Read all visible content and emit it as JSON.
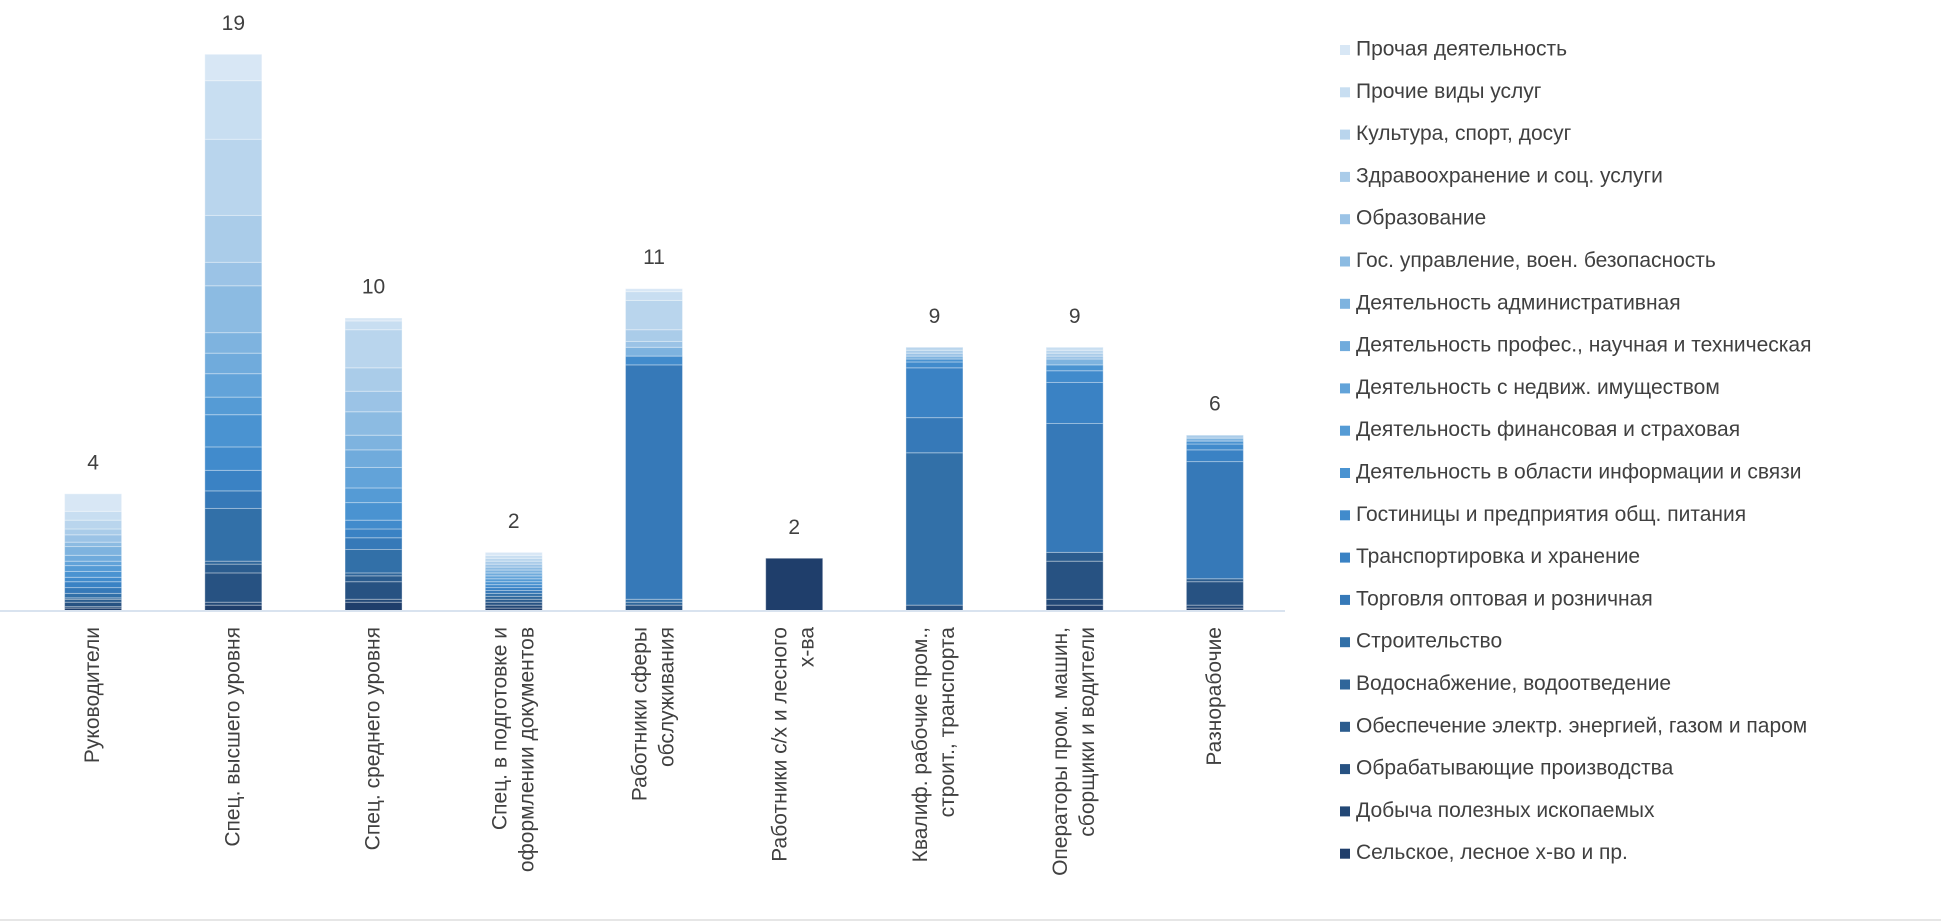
{
  "chart_data": {
    "type": "stacked_bar",
    "categories": [
      "Руководители",
      "Спец. высшего уровня",
      "Спец. среднего уровня",
      "Спец. в подготовке и оформлении документов",
      "Работники сферы обслуживания",
      "Работники с/х и лесного х-ва",
      "Квалиф. рабочие пром., строит., транспорта",
      "Операторы пром. машин, сборщики и водители",
      "Разнорабочие"
    ],
    "totals": [
      4,
      19,
      10,
      2,
      11,
      2,
      9,
      9,
      6
    ],
    "ylim": [
      0,
      20
    ],
    "legend": "right",
    "series": [
      {
        "name": "Сельское, лесное х-во и пр.",
        "color": "#1f3e6b",
        "values": [
          0.1,
          0.2,
          0.3,
          0.1,
          0,
          1.8,
          0,
          0.2,
          0.1
        ]
      },
      {
        "name": "Добыча полезных ископаемых",
        "color": "#234876",
        "values": [
          0.05,
          0.1,
          0.1,
          0.1,
          0,
          0,
          0,
          0.2,
          0.1
        ]
      },
      {
        "name": "Обрабатывающие производства",
        "color": "#275282",
        "values": [
          0.15,
          1.0,
          0.6,
          0.1,
          0.2,
          0,
          0.2,
          1.3,
          0.8
        ]
      },
      {
        "name": "Обеспечение электр. энергией, газом и паром",
        "color": "#2b5c8e",
        "values": [
          0.1,
          0.3,
          0.2,
          0.1,
          0,
          0,
          0,
          0.3,
          0.1
        ]
      },
      {
        "name": "Водоснабжение, водоотведение",
        "color": "#2f669a",
        "values": [
          0.05,
          0.1,
          0.1,
          0.1,
          0.1,
          0,
          0,
          0,
          0
        ]
      },
      {
        "name": "Строительство",
        "color": "#3270a8",
        "values": [
          0.15,
          1.8,
          0.8,
          0.1,
          0.1,
          0,
          5.2,
          0,
          0
        ]
      },
      {
        "name": "Торговля оптовая и розничная",
        "color": "#3679b8",
        "values": [
          0.2,
          0.6,
          0.4,
          0.1,
          8.0,
          0,
          1.2,
          4.4,
          4.0
        ]
      },
      {
        "name": "Транспортировка и хранение",
        "color": "#3a82c4",
        "values": [
          0.2,
          0.7,
          0.3,
          0.1,
          0,
          0,
          1.7,
          1.4,
          0.4
        ]
      },
      {
        "name": "Гостиницы и предприятия общ. питания",
        "color": "#418bcc",
        "values": [
          0.15,
          0.8,
          0.3,
          0.1,
          0.3,
          0,
          0.2,
          0.4,
          0.2
        ]
      },
      {
        "name": "Деятельность в области информации и связи",
        "color": "#4a93d1",
        "values": [
          0.2,
          1.1,
          0.6,
          0.1,
          0,
          0,
          0.1,
          0.2,
          0.1
        ]
      },
      {
        "name": "Деятельность финансовая и страховая",
        "color": "#559bd5",
        "values": [
          0.2,
          0.6,
          0.5,
          0.1,
          0,
          0,
          0,
          0,
          0
        ]
      },
      {
        "name": "Деятельность с недвиж. имуществом",
        "color": "#62a3d9",
        "values": [
          0.15,
          0.8,
          0.7,
          0.1,
          0,
          0,
          0,
          0,
          0
        ]
      },
      {
        "name": "Деятельность профес., научная и техническая",
        "color": "#70abdc",
        "values": [
          0.2,
          0.7,
          0.6,
          0.1,
          0,
          0,
          0,
          0,
          0
        ]
      },
      {
        "name": "Деятельность административная",
        "color": "#7eb3df",
        "values": [
          0.3,
          0.7,
          0.5,
          0.1,
          0.3,
          0,
          0.1,
          0.2,
          0.1
        ]
      },
      {
        "name": "Гос. управление, воен. безопасность",
        "color": "#8cbbe2",
        "values": [
          0.15,
          1.6,
          0.8,
          0.1,
          0,
          0,
          0,
          0,
          0
        ]
      },
      {
        "name": "Образование",
        "color": "#9bc3e6",
        "values": [
          0.25,
          0.8,
          0.7,
          0.1,
          0.2,
          0,
          0.1,
          0.1,
          0
        ]
      },
      {
        "name": "Здравоохранение и соц. услуги",
        "color": "#aacce9",
        "values": [
          0.2,
          1.6,
          0.8,
          0.1,
          0.4,
          0,
          0.1,
          0.1,
          0.1
        ]
      },
      {
        "name": "Культура, спорт, досуг",
        "color": "#b9d5ed",
        "values": [
          0.3,
          2.6,
          1.3,
          0.1,
          1.0,
          0,
          0.1,
          0.1,
          0
        ]
      },
      {
        "name": "Прочие виды услуг",
        "color": "#c8def1",
        "values": [
          0.3,
          2.0,
          0.3,
          0.1,
          0.3,
          0,
          0,
          0.1,
          0
        ]
      },
      {
        "name": "Прочая деятельность",
        "color": "#d8e7f5",
        "values": [
          0.6,
          0.9,
          0.1,
          0.1,
          0.1,
          0,
          0,
          0,
          0
        ]
      }
    ]
  }
}
